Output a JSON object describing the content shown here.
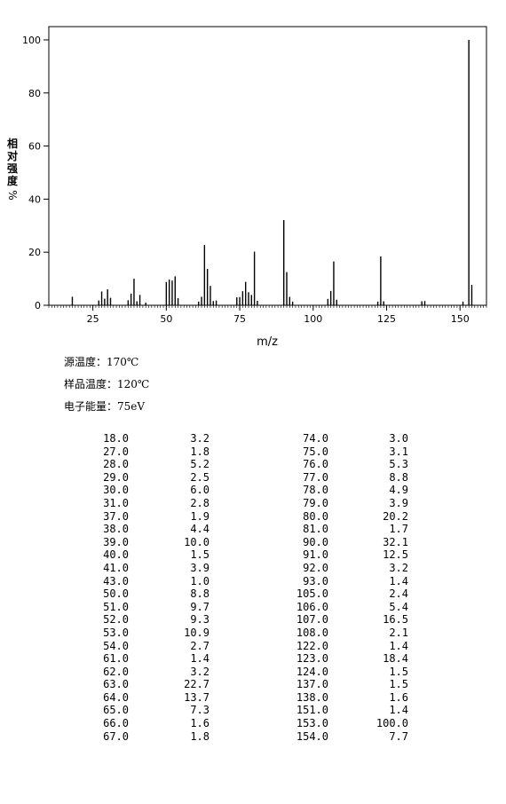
{
  "chart_data": {
    "type": "bar",
    "title": "",
    "xlabel": "m/z",
    "ylabel": "相对强度",
    "ylabel_unit": "%",
    "xlim": [
      10,
      159
    ],
    "ylim": [
      0,
      105
    ],
    "xticks": [
      25,
      50,
      75,
      100,
      125,
      150
    ],
    "yticks": [
      0,
      20,
      40,
      60,
      80,
      100
    ],
    "grid": false,
    "points": [
      [
        18,
        3.2
      ],
      [
        27,
        1.8
      ],
      [
        28,
        5.2
      ],
      [
        29,
        2.5
      ],
      [
        30,
        6.0
      ],
      [
        31,
        2.8
      ],
      [
        37,
        1.9
      ],
      [
        38,
        4.4
      ],
      [
        39,
        10.0
      ],
      [
        40,
        1.5
      ],
      [
        41,
        3.9
      ],
      [
        43,
        1.0
      ],
      [
        50,
        8.8
      ],
      [
        51,
        9.7
      ],
      [
        52,
        9.3
      ],
      [
        53,
        10.9
      ],
      [
        54,
        2.7
      ],
      [
        61,
        1.4
      ],
      [
        62,
        3.2
      ],
      [
        63,
        22.7
      ],
      [
        64,
        13.7
      ],
      [
        65,
        7.3
      ],
      [
        66,
        1.6
      ],
      [
        67,
        1.8
      ],
      [
        74,
        3.0
      ],
      [
        75,
        3.1
      ],
      [
        76,
        5.3
      ],
      [
        77,
        8.8
      ],
      [
        78,
        4.9
      ],
      [
        79,
        3.9
      ],
      [
        80,
        20.2
      ],
      [
        81,
        1.7
      ],
      [
        90,
        32.1
      ],
      [
        91,
        12.5
      ],
      [
        92,
        3.2
      ],
      [
        93,
        1.4
      ],
      [
        105,
        2.4
      ],
      [
        106,
        5.4
      ],
      [
        107,
        16.5
      ],
      [
        108,
        2.1
      ],
      [
        122,
        1.4
      ],
      [
        123,
        18.4
      ],
      [
        124,
        1.5
      ],
      [
        137,
        1.5
      ],
      [
        138,
        1.6
      ],
      [
        151,
        1.4
      ],
      [
        153,
        100.0
      ],
      [
        154,
        7.7
      ]
    ]
  },
  "conditions": {
    "source_temp": "源温度：170℃",
    "sample_temp": "样品温度：120℃",
    "electron_energy": "电子能量：75eV"
  },
  "peak_table": [
    [
      "18.0",
      "3.2",
      "74.0",
      "3.0"
    ],
    [
      "27.0",
      "1.8",
      "75.0",
      "3.1"
    ],
    [
      "28.0",
      "5.2",
      "76.0",
      "5.3"
    ],
    [
      "29.0",
      "2.5",
      "77.0",
      "8.8"
    ],
    [
      "30.0",
      "6.0",
      "78.0",
      "4.9"
    ],
    [
      "31.0",
      "2.8",
      "79.0",
      "3.9"
    ],
    [
      "37.0",
      "1.9",
      "80.0",
      "20.2"
    ],
    [
      "38.0",
      "4.4",
      "81.0",
      "1.7"
    ],
    [
      "39.0",
      "10.0",
      "90.0",
      "32.1"
    ],
    [
      "40.0",
      "1.5",
      "91.0",
      "12.5"
    ],
    [
      "41.0",
      "3.9",
      "92.0",
      "3.2"
    ],
    [
      "43.0",
      "1.0",
      "93.0",
      "1.4"
    ],
    [
      "50.0",
      "8.8",
      "105.0",
      "2.4"
    ],
    [
      "51.0",
      "9.7",
      "106.0",
      "5.4"
    ],
    [
      "52.0",
      "9.3",
      "107.0",
      "16.5"
    ],
    [
      "53.0",
      "10.9",
      "108.0",
      "2.1"
    ],
    [
      "54.0",
      "2.7",
      "122.0",
      "1.4"
    ],
    [
      "61.0",
      "1.4",
      "123.0",
      "18.4"
    ],
    [
      "62.0",
      "3.2",
      "124.0",
      "1.5"
    ],
    [
      "63.0",
      "22.7",
      "137.0",
      "1.5"
    ],
    [
      "64.0",
      "13.7",
      "138.0",
      "1.6"
    ],
    [
      "65.0",
      "7.3",
      "151.0",
      "1.4"
    ],
    [
      "66.0",
      "1.6",
      "153.0",
      "100.0"
    ],
    [
      "67.0",
      "1.8",
      "154.0",
      "7.7"
    ]
  ]
}
